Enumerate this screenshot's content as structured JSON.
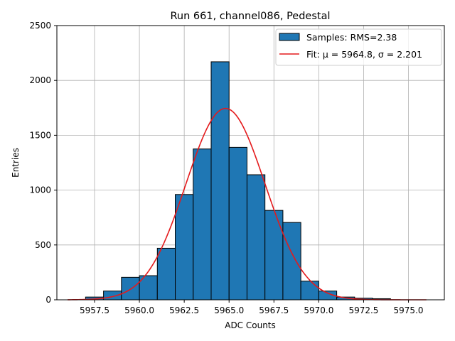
{
  "chart_data": {
    "type": "bar",
    "title": "Run 661, channel086, Pedestal",
    "xlabel": "ADC Counts",
    "ylabel": "Entries",
    "xlim": [
      5955.4,
      5977.0
    ],
    "ylim": [
      0,
      2500
    ],
    "grid": true,
    "legend_position": "top-right",
    "bar_color": "#1f77b4",
    "fit_color": "#e41a1c",
    "xticks": [
      {
        "value": 5957.5,
        "label": "5957.5"
      },
      {
        "value": 5960.0,
        "label": "5960.0"
      },
      {
        "value": 5962.5,
        "label": "5962.5"
      },
      {
        "value": 5965.0,
        "label": "5965.0"
      },
      {
        "value": 5967.5,
        "label": "5967.5"
      },
      {
        "value": 5970.0,
        "label": "5970.0"
      },
      {
        "value": 5972.5,
        "label": "5972.5"
      },
      {
        "value": 5975.0,
        "label": "5975.0"
      }
    ],
    "yticks": [
      {
        "value": 0,
        "label": "0"
      },
      {
        "value": 500,
        "label": "500"
      },
      {
        "value": 1000,
        "label": "1000"
      },
      {
        "value": 1500,
        "label": "1500"
      },
      {
        "value": 2000,
        "label": "2000"
      },
      {
        "value": 2500,
        "label": "2500"
      }
    ],
    "bins": [
      {
        "x0": 5957.0,
        "x1": 5958.0,
        "value": 25
      },
      {
        "x0": 5958.0,
        "x1": 5959.0,
        "value": 80
      },
      {
        "x0": 5959.0,
        "x1": 5960.0,
        "value": 205
      },
      {
        "x0": 5960.0,
        "x1": 5961.0,
        "value": 220
      },
      {
        "x0": 5961.0,
        "x1": 5962.0,
        "value": 470
      },
      {
        "x0": 5962.0,
        "x1": 5963.0,
        "value": 960
      },
      {
        "x0": 5963.0,
        "x1": 5964.0,
        "value": 1375
      },
      {
        "x0": 5964.0,
        "x1": 5965.0,
        "value": 2170
      },
      {
        "x0": 5965.0,
        "x1": 5966.0,
        "value": 1390
      },
      {
        "x0": 5966.0,
        "x1": 5967.0,
        "value": 1140
      },
      {
        "x0": 5967.0,
        "x1": 5968.0,
        "value": 815
      },
      {
        "x0": 5968.0,
        "x1": 5969.0,
        "value": 705
      },
      {
        "x0": 5969.0,
        "x1": 5970.0,
        "value": 170
      },
      {
        "x0": 5970.0,
        "x1": 5971.0,
        "value": 80
      },
      {
        "x0": 5971.0,
        "x1": 5972.0,
        "value": 25
      },
      {
        "x0": 5972.0,
        "x1": 5973.0,
        "value": 15
      },
      {
        "x0": 5973.0,
        "x1": 5974.0,
        "value": 10
      }
    ],
    "series": [
      {
        "name": "Samples: RMS=2.38",
        "type": "histogram"
      },
      {
        "name": "Fit: μ = 5964.8, σ = 2.201",
        "type": "line",
        "amplitude": 1745,
        "mu": 5964.8,
        "sigma": 2.201,
        "x_range": [
          5956.0,
          5976.0
        ]
      }
    ]
  }
}
